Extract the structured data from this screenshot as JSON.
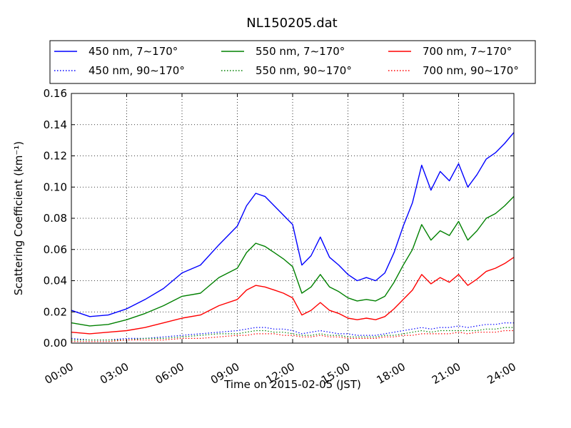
{
  "chart_data": {
    "type": "line",
    "title": "NL150205.dat",
    "xlabel": "Time on 2015-02-05 (JST)",
    "ylabel": "Scattering Coefficient (km⁻¹)",
    "xlim": [
      "00:00",
      "24:00"
    ],
    "ylim": [
      0,
      0.16
    ],
    "grid": true,
    "legend_position": "top",
    "x_ticks": [
      "00:00",
      "03:00",
      "06:00",
      "09:00",
      "12:00",
      "15:00",
      "18:00",
      "21:00",
      "24:00"
    ],
    "y_ticks": [
      "0.00",
      "0.02",
      "0.04",
      "0.06",
      "0.08",
      "0.10",
      "0.12",
      "0.14",
      "0.16"
    ],
    "x": [
      "00:00",
      "01:00",
      "02:00",
      "03:00",
      "04:00",
      "05:00",
      "06:00",
      "07:00",
      "08:00",
      "09:00",
      "09:30",
      "10:00",
      "10:30",
      "11:00",
      "11:30",
      "12:00",
      "12:30",
      "13:00",
      "13:30",
      "14:00",
      "14:30",
      "15:00",
      "15:30",
      "16:00",
      "16:30",
      "17:00",
      "17:30",
      "18:00",
      "18:30",
      "19:00",
      "19:30",
      "20:00",
      "20:30",
      "21:00",
      "21:30",
      "22:00",
      "22:30",
      "23:00",
      "23:30",
      "24:00"
    ],
    "series": [
      {
        "name": "450 nm, 7∼170°",
        "color": "#0000ff",
        "style": "solid",
        "values": [
          0.021,
          0.017,
          0.018,
          0.022,
          0.028,
          0.035,
          0.045,
          0.05,
          0.063,
          0.075,
          0.088,
          0.096,
          0.094,
          0.088,
          0.082,
          0.076,
          0.05,
          0.056,
          0.068,
          0.055,
          0.05,
          0.044,
          0.04,
          0.042,
          0.04,
          0.045,
          0.058,
          0.075,
          0.09,
          0.114,
          0.098,
          0.11,
          0.104,
          0.115,
          0.1,
          0.108,
          0.118,
          0.122,
          0.128,
          0.135
        ]
      },
      {
        "name": "450 nm, 90∼170°",
        "color": "#0000ff",
        "style": "dotted",
        "values": [
          0.003,
          0.002,
          0.002,
          0.003,
          0.003,
          0.004,
          0.005,
          0.006,
          0.007,
          0.008,
          0.009,
          0.01,
          0.01,
          0.009,
          0.009,
          0.008,
          0.006,
          0.007,
          0.008,
          0.007,
          0.006,
          0.006,
          0.005,
          0.005,
          0.005,
          0.006,
          0.007,
          0.008,
          0.009,
          0.01,
          0.009,
          0.01,
          0.01,
          0.011,
          0.01,
          0.011,
          0.012,
          0.012,
          0.013,
          0.013
        ]
      },
      {
        "name": "550 nm, 7∼170°",
        "color": "#008000",
        "style": "solid",
        "values": [
          0.013,
          0.011,
          0.012,
          0.015,
          0.019,
          0.024,
          0.03,
          0.032,
          0.042,
          0.048,
          0.058,
          0.064,
          0.062,
          0.058,
          0.054,
          0.049,
          0.032,
          0.036,
          0.044,
          0.036,
          0.033,
          0.029,
          0.027,
          0.028,
          0.027,
          0.03,
          0.039,
          0.05,
          0.06,
          0.076,
          0.066,
          0.072,
          0.069,
          0.078,
          0.066,
          0.072,
          0.08,
          0.083,
          0.088,
          0.094
        ]
      },
      {
        "name": "550 nm, 90∼170°",
        "color": "#008000",
        "style": "dotted",
        "values": [
          0.002,
          0.002,
          0.002,
          0.002,
          0.003,
          0.003,
          0.004,
          0.005,
          0.006,
          0.006,
          0.007,
          0.008,
          0.008,
          0.007,
          0.007,
          0.006,
          0.005,
          0.005,
          0.006,
          0.005,
          0.005,
          0.004,
          0.004,
          0.004,
          0.004,
          0.005,
          0.005,
          0.006,
          0.007,
          0.008,
          0.007,
          0.008,
          0.008,
          0.008,
          0.008,
          0.008,
          0.009,
          0.009,
          0.01,
          0.01
        ]
      },
      {
        "name": "700 nm, 7∼170°",
        "color": "#ff0000",
        "style": "solid",
        "values": [
          0.007,
          0.006,
          0.007,
          0.008,
          0.01,
          0.013,
          0.016,
          0.018,
          0.024,
          0.028,
          0.034,
          0.037,
          0.036,
          0.034,
          0.032,
          0.029,
          0.018,
          0.021,
          0.026,
          0.021,
          0.019,
          0.016,
          0.015,
          0.016,
          0.015,
          0.017,
          0.022,
          0.028,
          0.034,
          0.044,
          0.038,
          0.042,
          0.039,
          0.044,
          0.037,
          0.041,
          0.046,
          0.048,
          0.051,
          0.055
        ]
      },
      {
        "name": "700 nm, 90∼170°",
        "color": "#ff0000",
        "style": "dotted",
        "values": [
          0.001,
          0.001,
          0.001,
          0.002,
          0.002,
          0.002,
          0.003,
          0.003,
          0.004,
          0.005,
          0.005,
          0.006,
          0.006,
          0.006,
          0.005,
          0.005,
          0.004,
          0.004,
          0.005,
          0.004,
          0.004,
          0.003,
          0.003,
          0.003,
          0.003,
          0.004,
          0.004,
          0.005,
          0.005,
          0.006,
          0.006,
          0.006,
          0.006,
          0.007,
          0.006,
          0.007,
          0.007,
          0.007,
          0.008,
          0.008
        ]
      }
    ]
  }
}
